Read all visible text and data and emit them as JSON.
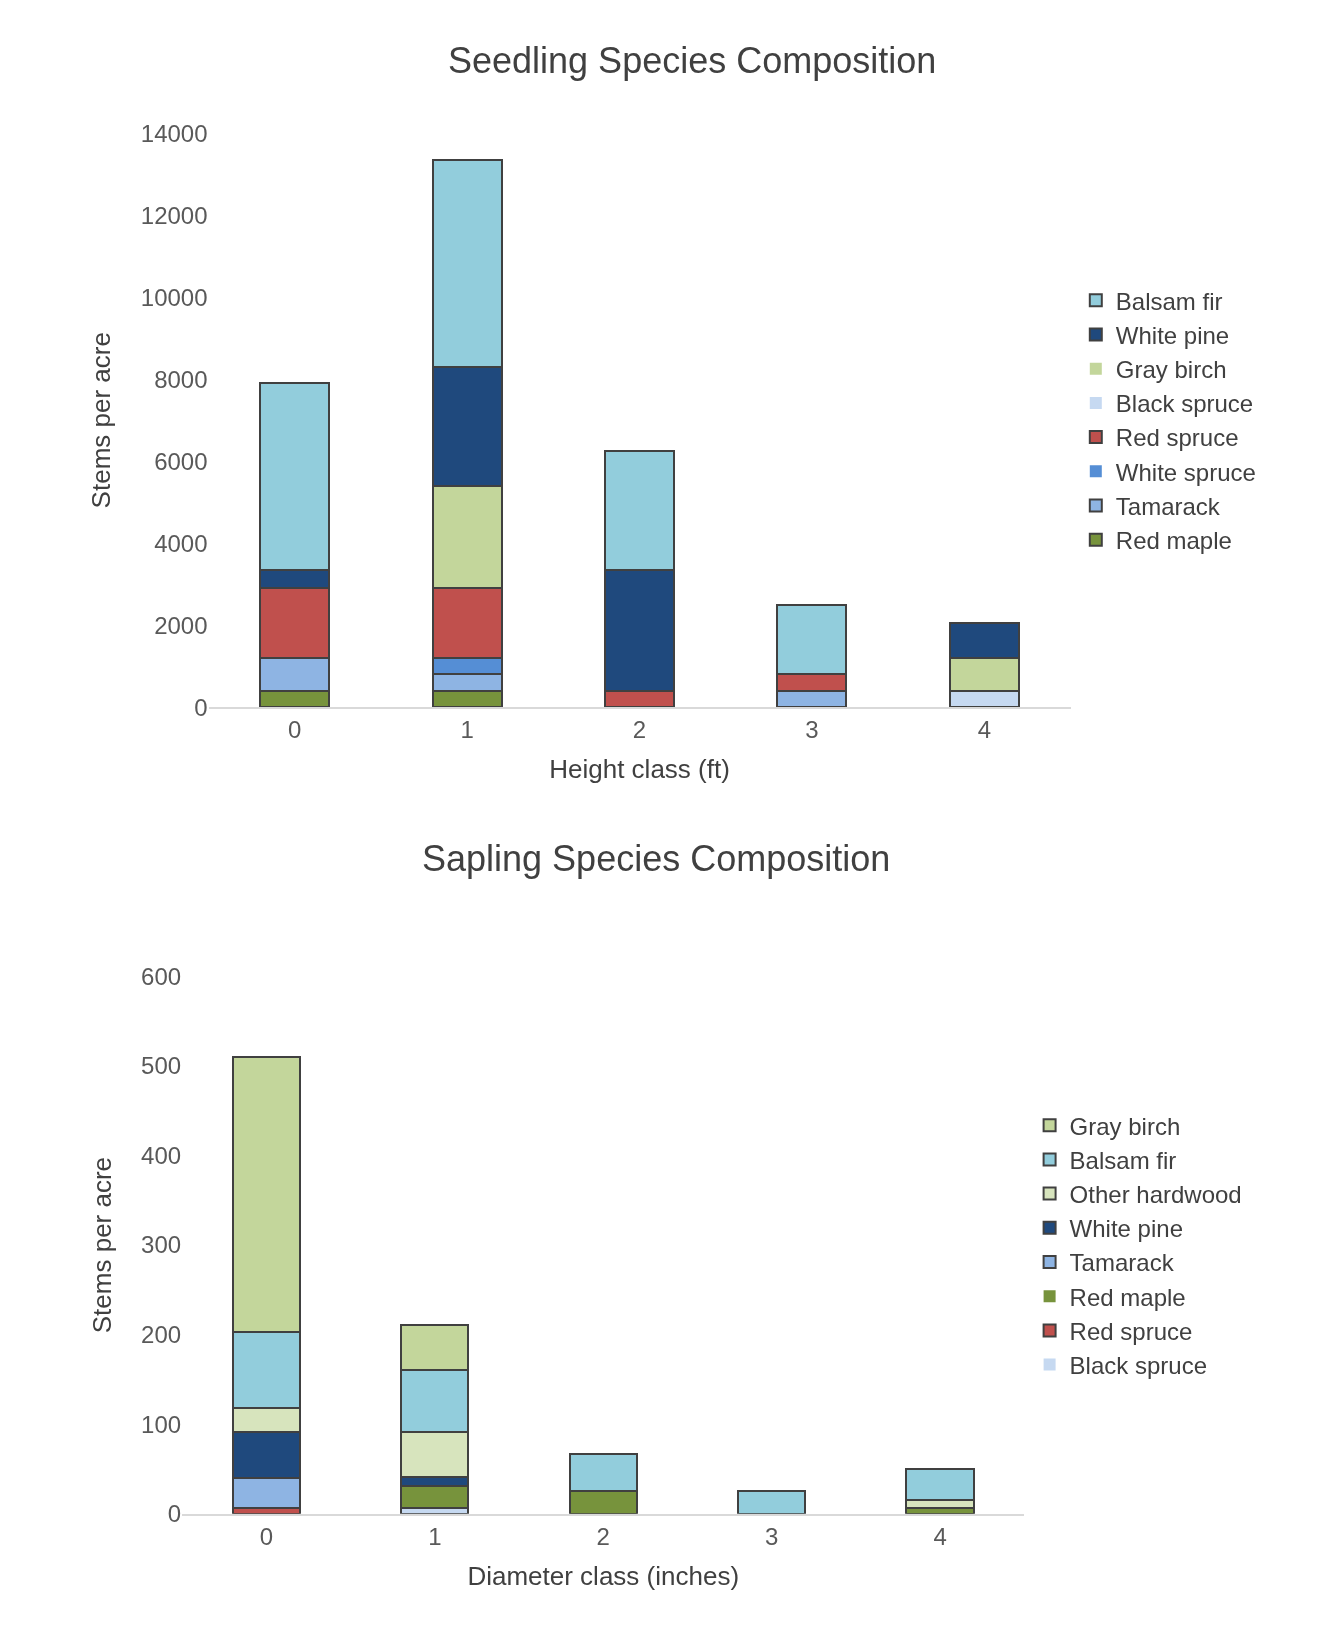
{
  "chart_data": [
    {
      "type": "bar",
      "stacked": true,
      "title": "Seedling Species Composition",
      "xlabel": "Height class (ft)",
      "ylabel": "Stems per acre",
      "categories": [
        "0",
        "1",
        "2",
        "3",
        "4"
      ],
      "ylim": [
        0,
        14000
      ],
      "yticks": [
        0,
        2000,
        4000,
        6000,
        8000,
        10000,
        12000,
        14000
      ],
      "grid": false,
      "legend": "right",
      "series": [
        {
          "name": "Red maple",
          "color": "#77933c",
          "values": [
            400,
            400,
            0,
            0,
            0
          ]
        },
        {
          "name": "Tamarack",
          "color": "#8eb4e3",
          "values": [
            800,
            400,
            0,
            400,
            0
          ]
        },
        {
          "name": "White spruce",
          "color": "#558ed5",
          "values": [
            0,
            400,
            0,
            0,
            0
          ]
        },
        {
          "name": "Red spruce",
          "color": "#c0504d",
          "values": [
            1700,
            1700,
            400,
            400,
            0
          ]
        },
        {
          "name": "Black spruce",
          "color": "#c6d9f1",
          "values": [
            0,
            0,
            0,
            0,
            400
          ]
        },
        {
          "name": "Gray birch",
          "color": "#c3d69b",
          "values": [
            0,
            2500,
            0,
            0,
            800
          ]
        },
        {
          "name": "White pine",
          "color": "#1f497d",
          "values": [
            450,
            2900,
            2950,
            0,
            850
          ]
        },
        {
          "name": "Balsam fir",
          "color": "#92cddc",
          "values": [
            4550,
            5050,
            2900,
            1700,
            0
          ]
        }
      ]
    },
    {
      "type": "bar",
      "stacked": true,
      "title": "Sapling Species Composition",
      "xlabel": "Diameter class (inches)",
      "ylabel": "Stems per acre",
      "categories": [
        "0",
        "1",
        "2",
        "3",
        "4"
      ],
      "ylim": [
        0,
        600
      ],
      "yticks": [
        0,
        100,
        200,
        300,
        400,
        500,
        600
      ],
      "grid": false,
      "legend": "right",
      "series": [
        {
          "name": "Black spruce",
          "color": "#c6d9f1",
          "values": [
            0,
            7,
            0,
            0,
            0
          ]
        },
        {
          "name": "Red spruce",
          "color": "#c0504d",
          "values": [
            7,
            0,
            0,
            0,
            0
          ]
        },
        {
          "name": "Red maple",
          "color": "#77933c",
          "values": [
            0,
            24,
            25,
            0,
            7
          ]
        },
        {
          "name": "Tamarack",
          "color": "#8eb4e3",
          "values": [
            33,
            0,
            0,
            0,
            0
          ]
        },
        {
          "name": "White pine",
          "color": "#1f497d",
          "values": [
            51,
            10,
            0,
            0,
            0
          ]
        },
        {
          "name": "Other hardwood",
          "color": "#d7e4bd",
          "values": [
            27,
            50,
            0,
            0,
            8
          ]
        },
        {
          "name": "Balsam fir",
          "color": "#92cddc",
          "values": [
            85,
            69,
            42,
            25,
            35
          ]
        },
        {
          "name": "Gray birch",
          "color": "#c3d69b",
          "values": [
            307,
            51,
            0,
            0,
            0
          ]
        }
      ]
    }
  ]
}
